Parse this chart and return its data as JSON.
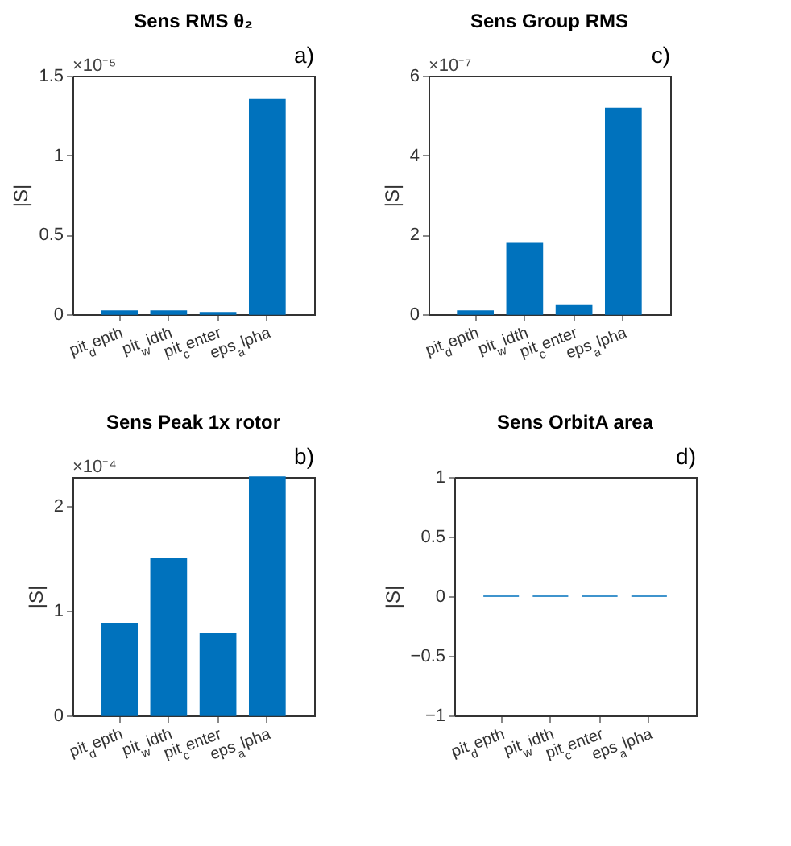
{
  "chart_data": [
    {
      "type": "bar",
      "title": "Sens RMS θ₂",
      "ylabel": "|S|",
      "annotations": [
        "a)",
        "×10⁻⁵"
      ],
      "categories": [
        "pit$_{d}$epth",
        "pit$_{w}$idth",
        "pit$_{c}$enter",
        "eps$_{a}$lpha"
      ],
      "values": [
        0.02,
        0.02,
        0.01,
        1.35
      ],
      "color": "#0072bd",
      "ylim": [
        0,
        1.5
      ],
      "yticks": [
        0,
        0.5,
        1,
        1.5
      ]
    },
    {
      "type": "bar",
      "title": "Sens Group RMS",
      "ylabel": "|S|",
      "annotations": [
        "c)",
        "×10⁻⁷"
      ],
      "categories": [
        "pit$_{d}$epth",
        "pit$_{w}$idth",
        "pit$_{c}$enter",
        "eps$_{a}$lpha"
      ],
      "values": [
        0.08,
        1.8,
        0.23,
        5.18
      ],
      "color": "#0072bd",
      "ylim": [
        0,
        6
      ],
      "yticks": [
        0,
        2,
        4,
        6
      ]
    },
    {
      "type": "bar",
      "title": "Sens Peak 1x rotor",
      "ylabel": "|S|",
      "annotations": [
        "b)",
        "×10⁻⁴"
      ],
      "categories": [
        "pit$_{d}$epth",
        "pit$_{w}$idth",
        "pit$_{c}$enter",
        "eps$_{a}$lpha"
      ],
      "values": [
        0.88,
        1.5,
        0.78,
        2.28
      ],
      "color": "#0072bd",
      "ylim": [
        0,
        2.28
      ],
      "yticks": [
        0,
        1,
        2
      ]
    },
    {
      "type": "bar",
      "title": "Sens OrbitA area",
      "ylabel": "|S|",
      "annotations": [
        "d)"
      ],
      "categories": [
        "pit$_{d}$epth",
        "pit$_{w}$idth",
        "pit$_{c}$enter",
        "eps$_{a}$lpha"
      ],
      "values": [
        0,
        0,
        0,
        0
      ],
      "color": "#0072bd",
      "ylim": [
        -1,
        1
      ],
      "yticks": [
        -1,
        -0.5,
        0,
        0.5,
        1
      ]
    }
  ]
}
